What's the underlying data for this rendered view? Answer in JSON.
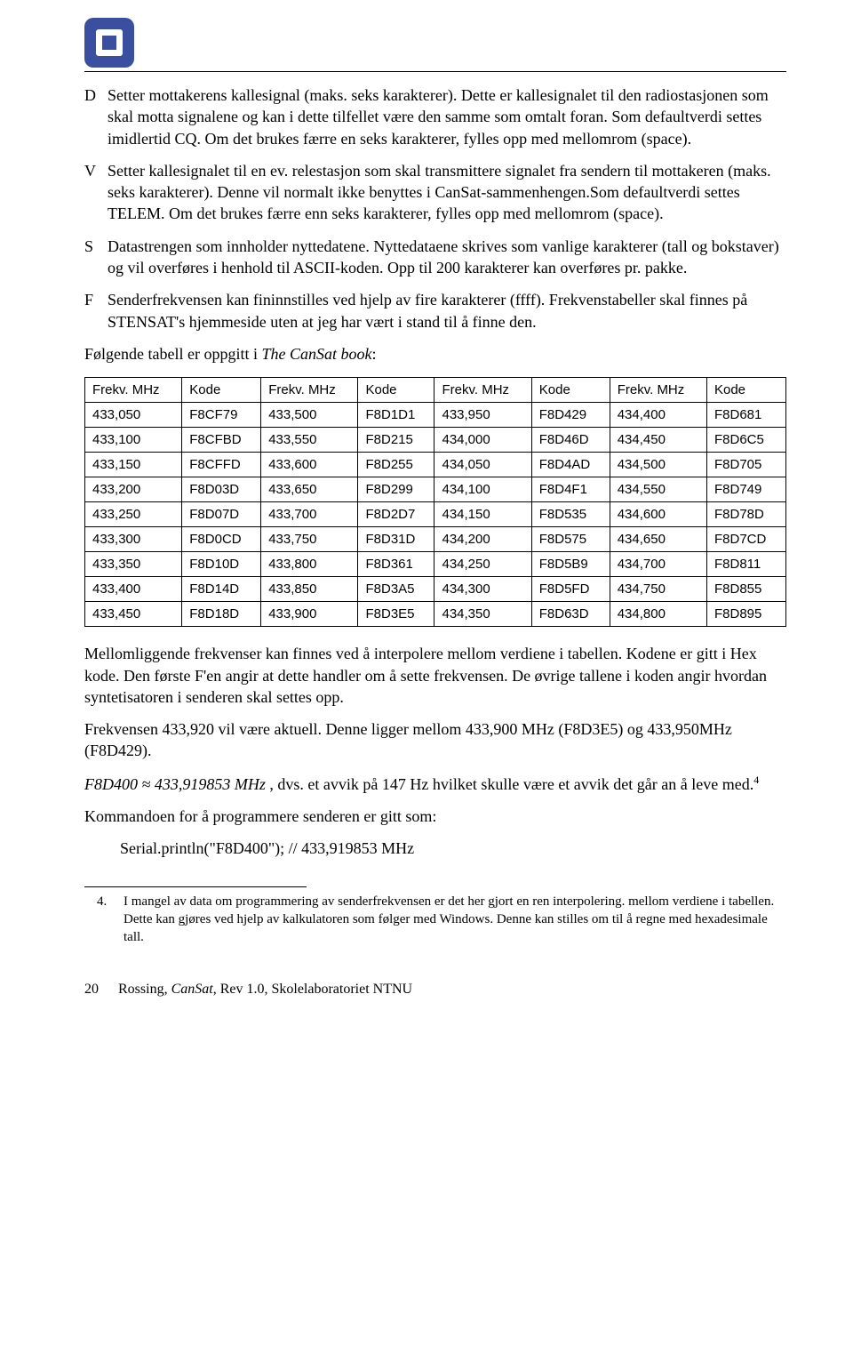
{
  "list": [
    {
      "letter": "D",
      "text": "Setter mottakerens kallesignal (maks. seks karakterer). Dette er kallesignalet til den radiostasjonen som skal motta signalene og kan i dette tilfellet være den samme som omtalt foran. Som defaultverdi settes imidlertid CQ. Om det brukes færre en seks karakterer, fylles opp med mellomrom (space)."
    },
    {
      "letter": "V",
      "text": "Setter kallesignalet til en ev. relestasjon som skal transmittere signalet fra sendern til mottakeren (maks. seks karakterer). Denne vil normalt ikke benyttes i CanSat-sammenhengen.Som defaultverdi settes TELEM. Om det brukes færre enn seks karakterer, fylles opp med mellomrom (space)."
    },
    {
      "letter": "S",
      "text": "Datastrengen som innholder nyttedatene. Nyttedataene skrives som vanlige karakterer (tall og bokstaver) og vil overføres i henhold til ASCII-koden. Opp til 200 karakterer kan overføres pr. pakke."
    },
    {
      "letter": "F",
      "text": "Senderfrekvensen kan fininnstilles ved hjelp av fire karakterer (ffff). Frekvenstabeller skal finnes på STENSAT's hjemmeside uten at jeg har vært i stand til å finne den."
    }
  ],
  "tableIntroPlain": "Følgende tabell er oppgitt i ",
  "tableIntroItalic": "The CanSat book",
  "tableIntroColon": ":",
  "table": {
    "headers": [
      "Frekv. MHz",
      "Kode",
      "Frekv. MHz",
      "Kode",
      "Frekv. MHz",
      "Kode",
      "Frekv. MHz",
      "Kode"
    ],
    "rows": [
      [
        "433,050",
        "F8CF79",
        "433,500",
        "F8D1D1",
        "433,950",
        "F8D429",
        "434,400",
        "F8D681"
      ],
      [
        "433,100",
        "F8CFBD",
        "433,550",
        "F8D215",
        "434,000",
        "F8D46D",
        "434,450",
        "F8D6C5"
      ],
      [
        "433,150",
        "F8CFFD",
        "433,600",
        "F8D255",
        "434,050",
        "F8D4AD",
        "434,500",
        "F8D705"
      ],
      [
        "433,200",
        "F8D03D",
        "433,650",
        "F8D299",
        "434,100",
        "F8D4F1",
        "434,550",
        "F8D749"
      ],
      [
        "433,250",
        "F8D07D",
        "433,700",
        "F8D2D7",
        "434,150",
        "F8D535",
        "434,600",
        "F8D78D"
      ],
      [
        "433,300",
        "F8D0CD",
        "433,750",
        "F8D31D",
        "434,200",
        "F8D575",
        "434,650",
        "F8D7CD"
      ],
      [
        "433,350",
        "F8D10D",
        "433,800",
        "F8D361",
        "434,250",
        "F8D5B9",
        "434,700",
        "F8D811"
      ],
      [
        "433,400",
        "F8D14D",
        "433,850",
        "F8D3A5",
        "434,300",
        "F8D5FD",
        "434,750",
        "F8D855"
      ],
      [
        "433,450",
        "F8D18D",
        "433,900",
        "F8D3E5",
        "434,350",
        "F8D63D",
        "434,800",
        "F8D895"
      ]
    ]
  },
  "p1": "Mellomliggende frekvenser kan finnes ved å interpolere mellom verdiene i tabellen. Kodene er gitt i Hex kode. Den første F'en angir at dette handler om å sette frekvensen. De øvrige tallene i koden angir hvordan syntetisatoren i senderen skal settes opp.",
  "p2": "Frekvensen 433,920 vil være aktuell. Denne ligger mellom 433,900 MHz (F8D3E5) og 433,950MHz (F8D429).",
  "p3_ital": "F8D400 ≈ 433,919853 MHz",
  "p3_rest": " , dvs. et avvik på 147 Hz hvilket skulle være et avvik det går an å leve med.",
  "p3_sup": "4",
  "p4": "Kommandoen for å programmere senderen er gitt som:",
  "p5": "Serial.println(\"F8D400\"); // 433,919853 MHz",
  "footnote": {
    "num": "4.",
    "text": "I mangel av data om programmering av senderfrekvensen er det her gjort en ren interpolering. mellom verdiene i tabellen. Dette kan gjøres ved hjelp av kalkulatoren som følger med Windows. Denne kan stilles om til å regne med hexadesimale tall."
  },
  "footer": {
    "page": "20",
    "author": "Rossing, ",
    "title": "CanSat",
    "rest": ", Rev 1.0, Skolelaboratoriet NTNU"
  },
  "colors": {
    "logo_bg": "#3b4fa0",
    "text": "#000000",
    "bg": "#ffffff"
  }
}
